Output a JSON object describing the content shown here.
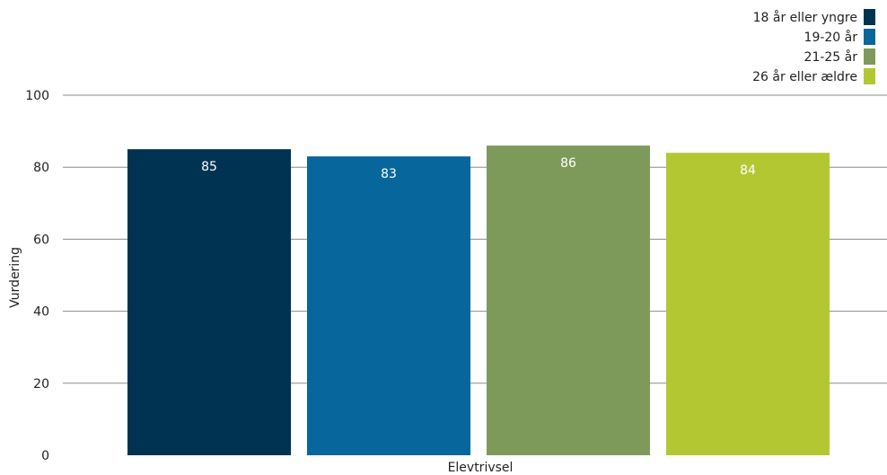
{
  "chart_data": {
    "type": "bar",
    "categories": [
      "Elevtrivsel"
    ],
    "series": [
      {
        "name": "18 år eller yngre",
        "values": [
          85
        ],
        "color": "#003352"
      },
      {
        "name": "19-20 år",
        "values": [
          83
        ],
        "color": "#07669b"
      },
      {
        "name": "21-25 år",
        "values": [
          86
        ],
        "color": "#7e9a5b"
      },
      {
        "name": "26 år eller ældre",
        "values": [
          84
        ],
        "color": "#b3c733"
      }
    ],
    "data_labels": [
      "85",
      "83",
      "86",
      "84"
    ],
    "xlabel": "Elevtrivsel",
    "ylabel": "Vurdering",
    "ylim": [
      0,
      100
    ],
    "yticks": [
      0,
      20,
      40,
      60,
      80,
      100
    ],
    "grid": true,
    "legend": "top-right"
  }
}
